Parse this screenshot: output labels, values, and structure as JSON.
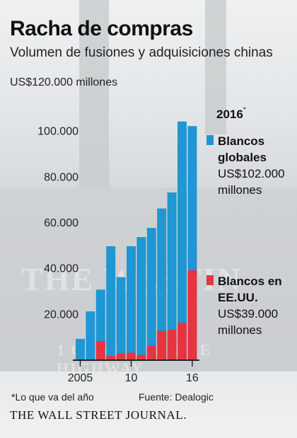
{
  "header": {
    "title": "Racha de compras",
    "subtitle": "Volumen de fusiones y adquisiciones chinas",
    "top_axis_label": "US$120.000 millones"
  },
  "legend": {
    "year": "2016",
    "year_marker": "*",
    "items": [
      {
        "name_line1": "Blancos",
        "name_line2": "globales",
        "amount_line1": "US$102.000",
        "amount_line2": "millones",
        "color": "#1e97d4"
      },
      {
        "name_line1": "Blancos en",
        "name_line2": "EE.UU.",
        "amount_line1": "US$39.000",
        "amount_line2": "millones",
        "color": "#e8343f"
      }
    ]
  },
  "footer": {
    "footnote": "*Lo que va del año",
    "source": "Fuente: Dealogic",
    "publisher": "THE WALL STREET JOURNAL."
  },
  "colors": {
    "global": "#1e97d4",
    "us": "#e8343f",
    "baseline": "#222222"
  },
  "chart_data": {
    "type": "bar",
    "stacked": "overlay",
    "title": "Racha de compras",
    "subtitle": "Volumen de fusiones y adquisiciones chinas",
    "unit": "US$ millones",
    "categories": [
      "2005",
      "2006",
      "2007",
      "2008",
      "2009",
      "2010",
      "2011",
      "2012",
      "2013",
      "2014",
      "2015",
      "2016"
    ],
    "x_tick_labels": [
      {
        "category": "2005",
        "label": "2005"
      },
      {
        "category": "2010",
        "label": "10"
      },
      {
        "category": "2016",
        "label": "16"
      }
    ],
    "ylim": [
      0,
      120000
    ],
    "y_ticks": [
      {
        "value": 20000,
        "label": "20.000"
      },
      {
        "value": 40000,
        "label": "40.000"
      },
      {
        "value": 60000,
        "label": "60.000"
      },
      {
        "value": 80000,
        "label": "80.000"
      },
      {
        "value": 100000,
        "label": "100.000"
      },
      {
        "value": 120000,
        "label": "US$120.000 millones"
      }
    ],
    "series": [
      {
        "name": "Blancos globales",
        "color": "#1e97d4",
        "values": [
          9000,
          21000,
          30500,
          49500,
          36000,
          49500,
          53500,
          57500,
          66000,
          73000,
          104000,
          102000
        ]
      },
      {
        "name": "Blancos en EE.UU.",
        "color": "#e8343f",
        "values": [
          0,
          0,
          8000,
          1500,
          2500,
          3000,
          2000,
          6000,
          12500,
          13000,
          16000,
          39000
        ]
      }
    ],
    "legend_position": "right",
    "grid": false
  }
}
